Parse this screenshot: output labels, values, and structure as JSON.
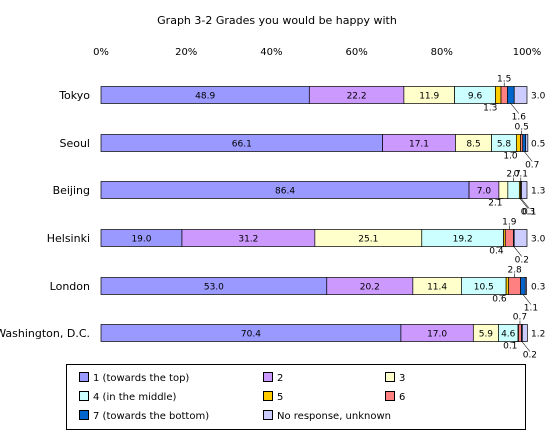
{
  "chart_data": {
    "type": "bar",
    "orientation": "horizontal",
    "stacked": "percent",
    "title": "Graph 3-2  Grades you would be happy with",
    "x_ticks": [
      "0%",
      "20%",
      "40%",
      "60%",
      "80%",
      "100%"
    ],
    "xlim": [
      0,
      100
    ],
    "legend_position": "bottom",
    "categories": [
      "Tokyo",
      "Seoul",
      "Beijing",
      "Helsinki",
      "London",
      "Washington, D.C."
    ],
    "series": [
      {
        "name": "1 (towards the top)",
        "color": "#9999ff",
        "values": [
          48.9,
          66.1,
          86.4,
          19.0,
          53.0,
          70.4
        ]
      },
      {
        "name": "2",
        "color": "#cc99ff",
        "values": [
          22.2,
          17.1,
          7.0,
          31.2,
          20.2,
          17.0
        ]
      },
      {
        "name": "3",
        "color": "#ffffcc",
        "values": [
          11.9,
          8.5,
          2.1,
          25.1,
          11.4,
          5.9
        ]
      },
      {
        "name": "4 (in the middle)",
        "color": "#ccffff",
        "values": [
          9.6,
          5.8,
          2.7,
          19.2,
          10.5,
          4.6
        ]
      },
      {
        "name": "5",
        "color": "#ffcc00",
        "values": [
          1.3,
          1.0,
          0.3,
          0.4,
          0.6,
          0.1
        ]
      },
      {
        "name": "6",
        "color": "#ff8080",
        "values": [
          1.5,
          0.5,
          0.1,
          1.9,
          2.8,
          0.7
        ]
      },
      {
        "name": "7 (towards the bottom)",
        "color": "#0066cc",
        "values": [
          1.6,
          0.7,
          0.1,
          0.2,
          1.1,
          0.2
        ]
      },
      {
        "name": "No response, unknown",
        "color": "#ccccff",
        "values": [
          3.0,
          0.5,
          1.3,
          3.0,
          0.3,
          1.2
        ]
      }
    ],
    "segment_labels": [
      [
        "48.9",
        "22.2",
        "11.9",
        "9.6",
        "1.3",
        "1.5",
        "1.6",
        "3.0"
      ],
      [
        "66.1",
        "17.1",
        "8.5",
        "5.8",
        "1.0",
        "0.5",
        "0.7",
        "0.5"
      ],
      [
        "86.4",
        "7.0",
        "2.1",
        "2.7",
        "0.3",
        "0.1",
        "0.1",
        "1.3"
      ],
      [
        "19.0",
        "31.2",
        "25.1",
        "19.2",
        "0.4",
        "1.9",
        "0.2",
        "3.0"
      ],
      [
        "53.0",
        "20.2",
        "11.4",
        "10.5",
        "0.6",
        "2.8",
        "1.1",
        "0.3"
      ],
      [
        "70.4",
        "17.0",
        "5.9",
        "4.6",
        "0.1",
        "0.7",
        "0.2",
        "1.2"
      ]
    ]
  }
}
